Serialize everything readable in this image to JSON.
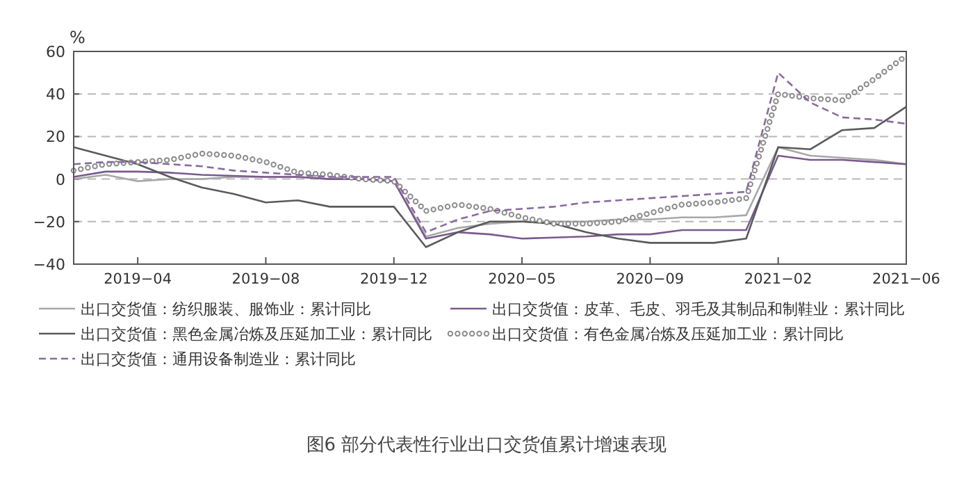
{
  "chart_data": {
    "type": "line",
    "title": "图6 部分代表性行业出口交货值累计增速表现",
    "ylabel": "%",
    "categories": [
      null,
      null,
      "2019−04",
      null,
      null,
      null,
      "2019−08",
      null,
      null,
      null,
      "2019−12",
      null,
      null,
      null,
      "2020−05",
      null,
      null,
      null,
      "2020−09",
      null,
      null,
      null,
      "2021−02",
      null,
      null,
      null,
      "2021−06"
    ],
    "series": [
      {
        "name": "出口交货值：纺织服装、服饰业：累计同比",
        "color": "#a8a8a8",
        "line_style": "solid",
        "values": [
          0,
          2,
          -1,
          0,
          0,
          1,
          1,
          1,
          0,
          0,
          -1,
          -27,
          -23,
          -21,
          -20,
          -20,
          -20,
          -19,
          -19,
          -18,
          -18,
          -17,
          15,
          11,
          10,
          9,
          7
        ]
      },
      {
        "name": "出口交货值：皮革、毛皮、羽毛及其制品和制鞋业：累计同比",
        "color": "#7a5a8e",
        "line_style": "solid",
        "values": [
          1,
          3.5,
          3.5,
          3,
          2,
          1.5,
          1,
          1,
          0,
          0,
          -1,
          -28,
          -25,
          -26,
          -28,
          -27.5,
          -27,
          -26,
          -26,
          -24,
          -24,
          -24,
          11,
          9,
          9,
          8,
          7
        ]
      },
      {
        "name": "出口交货值：黑色金属冶炼及压延加工业：累计同比",
        "color": "#5a5a5a",
        "line_style": "solid",
        "values": [
          15,
          11,
          7,
          1,
          -4,
          -7,
          -11,
          -10,
          -13,
          -13,
          -13,
          -32,
          -25,
          -20,
          -20,
          -21,
          -25,
          -28,
          -30,
          -30,
          -30,
          -28,
          15,
          14,
          23,
          24,
          34
        ]
      },
      {
        "name": "出口交货值：有色金属冶炼及压延加工业：累计同比",
        "color": "#8c8c8c",
        "line_style": "dotted",
        "values": [
          4,
          7,
          8,
          9,
          12,
          11,
          8,
          3,
          2,
          0,
          -1,
          -15,
          -12,
          -14,
          -18,
          -21,
          -21,
          -20,
          -16,
          -12,
          -11,
          -9,
          40,
          38,
          37,
          47,
          58
        ]
      },
      {
        "name": "出口交货值：通用设备制造业：累计同比",
        "color": "#8a6a9e",
        "line_style": "dashed",
        "values": [
          7,
          8,
          8,
          7,
          6,
          4,
          3,
          2,
          1,
          1,
          1,
          -25,
          -19,
          -15,
          -14,
          -13,
          -11,
          -10,
          -9,
          -8,
          -7,
          -6,
          50,
          36,
          29,
          28,
          26
        ]
      }
    ],
    "ylim": [
      -40,
      60
    ],
    "yticks": [
      -40,
      -20,
      0,
      20,
      40,
      60
    ],
    "grid": "y",
    "legend": "bottom"
  }
}
